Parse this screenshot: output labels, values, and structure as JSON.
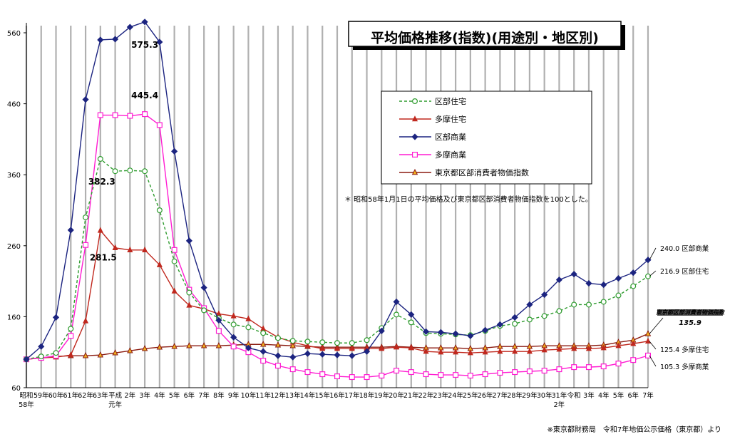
{
  "chart_data": {
    "type": "line",
    "title": "平均価格推移(指数)(用途別・地区別)",
    "ylim": [
      60,
      560
    ],
    "yticks": [
      60,
      160,
      260,
      360,
      460,
      560
    ],
    "grid": true,
    "x": [
      "昭和58年",
      "59年",
      "60年",
      "61年",
      "62年",
      "63年",
      "平成元年",
      "2年",
      "3年",
      "4年",
      "5年",
      "6年",
      "7年",
      "8年",
      "9年",
      "10年",
      "11年",
      "12年",
      "13年",
      "14年",
      "15年",
      "16年",
      "17年",
      "18年",
      "19年",
      "20年",
      "21年",
      "22年",
      "23年",
      "24年",
      "25年",
      "26年",
      "27年",
      "28年",
      "29年",
      "30年",
      "31年令和元年",
      "2年",
      "3年",
      "4年",
      "5年",
      "6年",
      "7年"
    ],
    "x_tick_labels": [
      "昭和",
      "59年",
      "60年",
      "61年",
      "62年",
      "63年",
      "平成",
      "2年",
      "3年",
      "4年",
      "5年",
      "6年",
      "7年",
      "8年",
      "9年",
      "10年",
      "11年",
      "12年",
      "13年",
      "14年",
      "15年",
      "16年",
      "17年",
      "18年",
      "19年",
      "20年",
      "21年",
      "22年",
      "23年",
      "24年",
      "25年",
      "26年",
      "27年",
      "28年",
      "29年",
      "30年",
      "31年",
      "令和",
      "3年",
      "4年",
      "5年",
      "6年",
      "7年"
    ],
    "x_tick_sublabels": {
      "0": "58年",
      "6": "元年",
      "36": "2年"
    },
    "series": [
      {
        "name": "区部住宅",
        "color": "#2e9b2e",
        "marker": "circle",
        "dashed": true,
        "values": [
          100,
          104,
          109,
          143,
          300,
          382.3,
          365,
          366,
          365,
          310,
          238,
          194,
          169,
          158,
          149,
          145,
          137,
          130,
          126,
          125,
          124,
          123,
          123,
          127,
          144,
          163,
          152,
          137,
          136,
          135,
          134,
          140,
          147,
          150,
          156,
          161,
          168,
          177,
          177,
          181,
          190,
          203,
          216.9
        ]
      },
      {
        "name": "多摩住宅",
        "color": "#c0281e",
        "marker": "triangle",
        "dashed": false,
        "values": [
          100,
          102,
          103,
          106,
          154,
          281.5,
          257,
          254,
          254,
          233,
          196,
          176,
          171,
          164,
          161,
          157,
          143,
          131,
          124,
          119,
          115,
          115,
          115,
          115,
          115,
          117,
          116,
          111,
          110,
          110,
          109,
          110,
          111,
          111,
          111,
          113,
          114,
          115,
          115,
          116,
          119,
          122,
          125.4
        ]
      },
      {
        "name": "区部商業",
        "color": "#1c2480",
        "marker": "diamond",
        "dashed": false,
        "values": [
          100,
          118,
          159,
          282,
          466,
          550,
          551,
          568,
          575.3,
          547,
          393,
          267,
          201,
          155,
          131,
          116,
          111,
          105,
          103,
          108,
          107,
          106,
          105,
          111,
          140,
          181,
          163,
          139,
          138,
          136,
          133,
          141,
          149,
          159,
          177,
          191,
          212,
          220,
          207,
          205,
          214,
          222,
          240.0
        ]
      },
      {
        "name": "多摩商業",
        "color": "#ff1cd2",
        "marker": "square",
        "dashed": false,
        "values": [
          100,
          102,
          105,
          133,
          261,
          444,
          444,
          443,
          445.4,
          430,
          254,
          198,
          172,
          140,
          118,
          110,
          98,
          91,
          86,
          82,
          79,
          76,
          75,
          75,
          77,
          84,
          82,
          79,
          78,
          78,
          77,
          79,
          81,
          82,
          83,
          84,
          86,
          89,
          89,
          90,
          94,
          99,
          105.3
        ]
      },
      {
        "name": "東京都区部消費者物価指数",
        "color": "#8b1a10",
        "marker": "triangle-open",
        "dashed": false,
        "values": [
          100,
          102,
          104,
          105,
          105,
          106,
          109,
          112,
          115,
          117,
          118,
          119,
          119,
          119,
          120,
          121,
          121,
          120,
          119,
          118,
          117,
          117,
          117,
          117,
          117,
          118,
          117,
          116,
          116,
          116,
          115,
          116,
          118,
          118,
          118,
          119,
          119,
          119,
          119,
          120,
          124,
          127,
          135.9
        ]
      }
    ],
    "annotations": [
      {
        "text": "575.3",
        "series": "区部商業",
        "index": 8
      },
      {
        "text": "445.4",
        "series": "多摩商業",
        "index": 8
      },
      {
        "text": "382.3",
        "series": "区部住宅",
        "index": 5
      },
      {
        "text": "281.5",
        "series": "多摩住宅",
        "index": 5
      }
    ],
    "end_labels": [
      {
        "value": "240.0",
        "name": "区部商業"
      },
      {
        "value": "216.9",
        "name": "区部住宅"
      },
      {
        "value": "125.4",
        "name": "多摩住宅"
      },
      {
        "value": "105.3",
        "name": "多摩商業"
      }
    ],
    "legend": {
      "placement": "center-right",
      "items": [
        "区部住宅",
        "多摩住宅",
        "区部商業",
        "多摩商業",
        "東京都区部消費者物価指数"
      ]
    },
    "cpi_label": {
      "name": "東京都区部消費者物価指数",
      "value": "135.9"
    },
    "note": "＊ 昭和58年1月1日の平均価格及び東京都区部消費者物価指数を100とした。"
  },
  "source": "※東京都財務局　令和7年地価公示価格（東京都）より"
}
